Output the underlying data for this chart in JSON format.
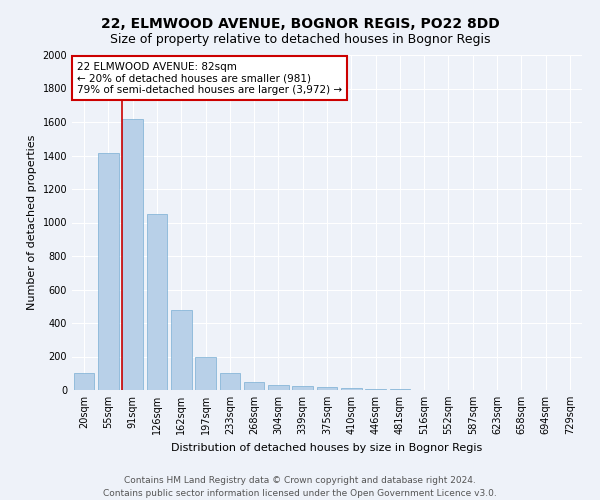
{
  "title": "22, ELMWOOD AVENUE, BOGNOR REGIS, PO22 8DD",
  "subtitle": "Size of property relative to detached houses in Bognor Regis",
  "xlabel": "Distribution of detached houses by size in Bognor Regis",
  "ylabel": "Number of detached properties",
  "categories": [
    "20sqm",
    "55sqm",
    "91sqm",
    "126sqm",
    "162sqm",
    "197sqm",
    "233sqm",
    "268sqm",
    "304sqm",
    "339sqm",
    "375sqm",
    "410sqm",
    "446sqm",
    "481sqm",
    "516sqm",
    "552sqm",
    "587sqm",
    "623sqm",
    "658sqm",
    "694sqm",
    "729sqm"
  ],
  "values": [
    100,
    1415,
    1620,
    1050,
    480,
    200,
    100,
    50,
    30,
    25,
    20,
    10,
    5,
    3,
    2,
    1,
    1,
    0,
    0,
    0,
    0
  ],
  "bar_color": "#b8d0e8",
  "bar_edge_color": "#7aafd4",
  "highlight_bar_index": 2,
  "highlight_color": "#cc0000",
  "annotation_text": "22 ELMWOOD AVENUE: 82sqm\n← 20% of detached houses are smaller (981)\n79% of semi-detached houses are larger (3,972) →",
  "annotation_box_color": "#ffffff",
  "annotation_box_edge": "#cc0000",
  "ylim": [
    0,
    2000
  ],
  "yticks": [
    0,
    200,
    400,
    600,
    800,
    1000,
    1200,
    1400,
    1600,
    1800,
    2000
  ],
  "footer_line1": "Contains HM Land Registry data © Crown copyright and database right 2024.",
  "footer_line2": "Contains public sector information licensed under the Open Government Licence v3.0.",
  "background_color": "#eef2f9",
  "grid_color": "#ffffff",
  "title_fontsize": 10,
  "subtitle_fontsize": 9,
  "axis_label_fontsize": 8,
  "tick_fontsize": 7,
  "footer_fontsize": 6.5,
  "annotation_fontsize": 7.5
}
